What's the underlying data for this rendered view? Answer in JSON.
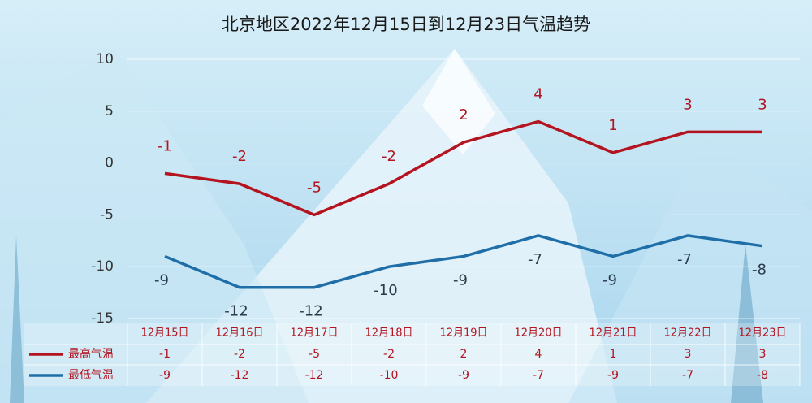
{
  "chart_data": {
    "type": "line",
    "title": "北京地区2022年12月15日到12月23日气温趋势",
    "categories": [
      "12月15日",
      "12月16日",
      "12月17日",
      "12月18日",
      "12月19日",
      "12月20日",
      "12月21日",
      "12月22日",
      "12月23日"
    ],
    "series": [
      {
        "name": "最高气温",
        "color": "#b3141f",
        "values": [
          -1,
          -2,
          -5,
          -2,
          2,
          4,
          1,
          3,
          3
        ]
      },
      {
        "name": "最低气温",
        "color": "#1f6ea8",
        "values": [
          -9,
          -12,
          -12,
          -10,
          -9,
          -7,
          -9,
          -7,
          -8
        ]
      }
    ],
    "ylim": [
      -15,
      10
    ],
    "yticks": [
      -15,
      -10,
      -5,
      0,
      5,
      10
    ],
    "grid": true
  }
}
